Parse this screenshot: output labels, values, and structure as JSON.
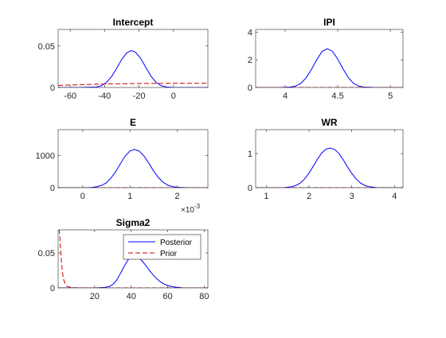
{
  "figure": {
    "background": "#ffffff",
    "axes_color": "#262626",
    "posterior_color": "#0000ff",
    "prior_color": "#cc0000"
  },
  "chart_data": [
    {
      "type": "line",
      "title": "Intercept",
      "xlim": [
        -67,
        20
      ],
      "ylim": [
        0,
        0.07
      ],
      "xticks": [
        -60,
        -40,
        -20,
        0
      ],
      "xtick_labels": [
        "-60",
        "-40",
        "-20",
        "0"
      ],
      "yticks": [
        0,
        0.05
      ],
      "ytick_labels": [
        "0",
        "0.05"
      ],
      "grid": false,
      "series": [
        {
          "name": "Posterior",
          "style": "solid",
          "color": "#0000ff",
          "x": [
            -67,
            -55,
            -45,
            -42,
            -39,
            -36,
            -33,
            -30,
            -27,
            -24.5,
            -22,
            -19,
            -16,
            -13,
            -10,
            -7,
            -4,
            -1,
            5,
            20
          ],
          "y": [
            0,
            0,
            0.0005,
            0.002,
            0.006,
            0.013,
            0.023,
            0.034,
            0.042,
            0.0445,
            0.0425,
            0.035,
            0.024,
            0.0135,
            0.006,
            0.002,
            0.0006,
            0.0001,
            0,
            0
          ]
        },
        {
          "name": "Prior",
          "style": "dashed",
          "color": "#cc0000",
          "x": [
            -67,
            -55,
            -40,
            -20,
            0,
            20
          ],
          "y": [
            0.0025,
            0.0033,
            0.0042,
            0.0048,
            0.005,
            0.0051
          ]
        }
      ]
    },
    {
      "type": "line",
      "title": "IPI",
      "xlim": [
        3.72,
        5.12
      ],
      "ylim": [
        0,
        4.2
      ],
      "xticks": [
        4,
        4.5,
        5
      ],
      "xtick_labels": [
        "4",
        "4.5",
        "5"
      ],
      "yticks": [
        0,
        2,
        4
      ],
      "ytick_labels": [
        "0",
        "2",
        "4"
      ],
      "grid": false,
      "series": [
        {
          "name": "Posterior",
          "style": "solid",
          "color": "#0000ff",
          "x": [
            3.72,
            3.95,
            4.05,
            4.1,
            4.15,
            4.2,
            4.25,
            4.3,
            4.35,
            4.4,
            4.45,
            4.5,
            4.55,
            4.6,
            4.65,
            4.7,
            4.75,
            4.85,
            5.12
          ],
          "y": [
            0,
            0,
            0.03,
            0.1,
            0.3,
            0.7,
            1.3,
            2.0,
            2.6,
            2.8,
            2.62,
            2.05,
            1.35,
            0.72,
            0.3,
            0.1,
            0.03,
            0,
            0
          ]
        },
        {
          "name": "Prior",
          "style": "dashed",
          "color": "#cc0000",
          "x": [
            3.72,
            5.12
          ],
          "y": [
            0.002,
            0.002
          ]
        }
      ]
    },
    {
      "type": "line",
      "title": "E",
      "xlim": [
        -0.00052,
        0.00265
      ],
      "ylim": [
        0,
        1800
      ],
      "xticks": [
        0,
        0.001,
        0.002
      ],
      "xtick_labels": [
        "0",
        "1",
        "2"
      ],
      "yticks": [
        0,
        1000
      ],
      "ytick_labels": [
        "0",
        "1000"
      ],
      "exponent_label": "×10",
      "exponent_power": "-3",
      "grid": false,
      "series": [
        {
          "name": "Posterior",
          "style": "solid",
          "color": "#0000ff",
          "x": [
            -0.00052,
            0.0001,
            0.0002,
            0.0003,
            0.0004,
            0.0005,
            0.0006,
            0.0007,
            0.0008,
            0.0009,
            0.001,
            0.0011,
            0.0012,
            0.0013,
            0.0014,
            0.0015,
            0.0016,
            0.0017,
            0.0018,
            0.0019,
            0.002,
            0.0022,
            0.00265
          ],
          "y": [
            0,
            0,
            10,
            30,
            70,
            150,
            300,
            500,
            750,
            980,
            1140,
            1190,
            1130,
            980,
            760,
            520,
            320,
            170,
            80,
            35,
            12,
            0,
            0
          ]
        },
        {
          "name": "Prior",
          "style": "dashed",
          "color": "#cc0000",
          "x": [
            -0.00052,
            0.00265
          ],
          "y": [
            0,
            0
          ]
        }
      ]
    },
    {
      "type": "line",
      "title": "WR",
      "xlim": [
        0.75,
        4.2
      ],
      "ylim": [
        0,
        1.7
      ],
      "xticks": [
        1,
        2,
        3,
        4
      ],
      "xtick_labels": [
        "1",
        "2",
        "3",
        "4"
      ],
      "yticks": [
        0,
        1
      ],
      "ytick_labels": [
        "0",
        "1"
      ],
      "grid": false,
      "series": [
        {
          "name": "Posterior",
          "style": "solid",
          "color": "#0000ff",
          "x": [
            0.75,
            1.4,
            1.6,
            1.7,
            1.8,
            1.9,
            2.0,
            2.1,
            2.2,
            2.3,
            2.4,
            2.5,
            2.6,
            2.7,
            2.8,
            2.9,
            3.0,
            3.1,
            3.2,
            3.3,
            3.4,
            3.6,
            4.2
          ],
          "y": [
            0,
            0,
            0.03,
            0.07,
            0.14,
            0.26,
            0.43,
            0.63,
            0.84,
            1.02,
            1.13,
            1.16,
            1.12,
            1.0,
            0.82,
            0.61,
            0.42,
            0.26,
            0.14,
            0.07,
            0.03,
            0,
            0
          ]
        },
        {
          "name": "Prior",
          "style": "dashed",
          "color": "#cc0000",
          "x": [
            0.75,
            4.2
          ],
          "y": [
            0.001,
            0.001
          ]
        }
      ]
    },
    {
      "type": "line",
      "title": "Sigma2",
      "xlim": [
        0,
        82
      ],
      "ylim": [
        0,
        0.083
      ],
      "xticks": [
        20,
        40,
        60,
        80
      ],
      "xtick_labels": [
        "20",
        "40",
        "60",
        "80"
      ],
      "yticks": [
        0,
        0.05
      ],
      "ytick_labels": [
        "0",
        "0.05"
      ],
      "grid": false,
      "legend": "top-right",
      "series": [
        {
          "name": "Posterior",
          "style": "solid",
          "color": "#0000ff",
          "x": [
            0,
            20,
            25,
            28,
            30,
            32,
            34,
            36,
            38,
            40,
            42,
            44,
            46,
            48,
            50,
            52,
            54,
            56,
            58,
            60,
            62,
            65,
            68,
            72,
            82
          ],
          "y": [
            0,
            0,
            0.0005,
            0.002,
            0.005,
            0.011,
            0.02,
            0.03,
            0.039,
            0.045,
            0.046,
            0.0435,
            0.0385,
            0.032,
            0.025,
            0.0185,
            0.013,
            0.0087,
            0.0056,
            0.0034,
            0.002,
            0.0008,
            0.0002,
            0,
            0
          ]
        },
        {
          "name": "Prior",
          "style": "dashed",
          "color": "#cc0000",
          "x": [
            0.3,
            0.6,
            0.9,
            1.2,
            1.6,
            2.0,
            2.5,
            3.0,
            4.0,
            5.0,
            7.0,
            10.0,
            20.0,
            40.0,
            82.0
          ],
          "y": [
            0.083,
            0.083,
            0.075,
            0.06,
            0.045,
            0.032,
            0.02,
            0.012,
            0.005,
            0.002,
            0.0006,
            0.0001,
            0,
            0,
            0
          ]
        }
      ]
    }
  ]
}
